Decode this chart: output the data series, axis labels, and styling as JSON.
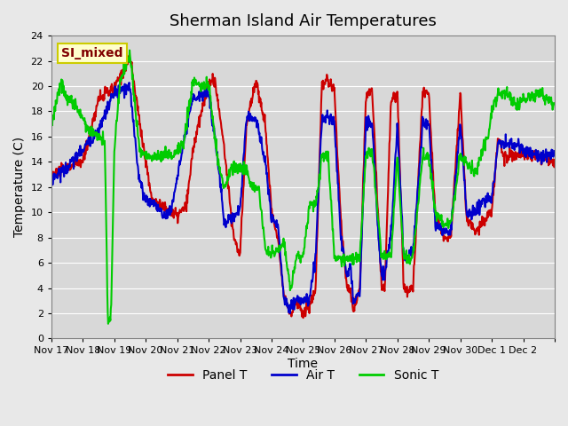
{
  "title": "Sherman Island Air Temperatures",
  "xlabel": "Time",
  "ylabel": "Temperature (C)",
  "ylim": [
    0,
    24
  ],
  "yticks": [
    0,
    2,
    4,
    6,
    8,
    10,
    12,
    14,
    16,
    18,
    20,
    22,
    24
  ],
  "x_tick_labels": [
    "Nov 17",
    "Nov 18",
    "Nov 19",
    "Nov 20",
    "Nov 21",
    "Nov 22",
    "Nov 23",
    "Nov 24",
    "Nov 25",
    "Nov 26",
    "Nov 27",
    "Nov 28",
    "Nov 29",
    "Nov 30",
    "Dec 1",
    "Dec 2",
    ""
  ],
  "panel_t_color": "#cc0000",
  "air_t_color": "#0000cc",
  "sonic_t_color": "#00cc00",
  "bg_color": "#e8e8e8",
  "plot_bg_color": "#d8d8d8",
  "legend_label": "SI_mixed",
  "legend_text_color": "#800000",
  "legend_bg_color": "#ffffcc",
  "legend_border_color": "#cccc00",
  "line_width": 1.5,
  "figsize": [
    6.4,
    4.8
  ],
  "dpi": 100,
  "n_days": 16
}
